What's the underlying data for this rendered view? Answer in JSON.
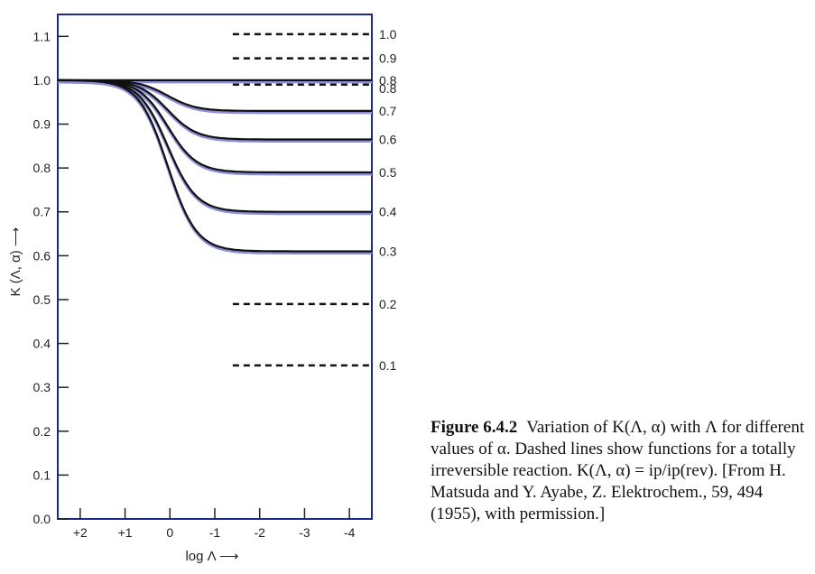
{
  "chart_data": {
    "type": "line",
    "title": "",
    "xlabel": "log Λ ⟶",
    "ylabel": "K (Λ, α) ⟶",
    "x_direction": "decreasing",
    "xlim": [
      2.5,
      -4.5
    ],
    "ylim": [
      0.0,
      1.15
    ],
    "x_ticks": [
      2,
      1,
      0,
      -1,
      -2,
      -3,
      -4
    ],
    "x_tick_labels": [
      "+2",
      "+1",
      "0",
      "-1",
      "-2",
      "-3",
      "-4"
    ],
    "y_ticks": [
      0.0,
      0.1,
      0.2,
      0.3,
      0.4,
      0.5,
      0.6,
      0.7,
      0.8,
      0.9,
      1.0,
      1.1
    ],
    "y_tick_labels": [
      "0.0",
      "0.1",
      "0.2",
      "0.3",
      "0.4",
      "0.5",
      "0.6",
      "0.7",
      "0.8",
      "0.9",
      "1.0",
      "1.1"
    ],
    "grid": false,
    "solid_series": [
      {
        "label": "0.8",
        "plateau": 1.0
      },
      {
        "label": "0.7",
        "plateau": 0.93
      },
      {
        "label": "0.6",
        "plateau": 0.865
      },
      {
        "label": "0.5",
        "plateau": 0.79
      },
      {
        "label": "0.4",
        "plateau": 0.7
      },
      {
        "label": "0.3",
        "plateau": 0.61
      }
    ],
    "dashed_series": [
      {
        "label": "1.0",
        "value": 1.105
      },
      {
        "label": "0.9",
        "value": 1.05
      },
      {
        "label": "0.8",
        "value": 0.99
      },
      {
        "label": "0.2",
        "value": 0.49
      },
      {
        "label": "0.1",
        "value": 0.35
      }
    ],
    "dashed_x_range": [
      -1.4,
      -4.5
    ]
  },
  "caption": {
    "figure_number": "Figure 6.4.2",
    "text": "Variation of K(Λ, α) with Λ for different values of α. Dashed lines show functions for a totally irreversible reaction. K(Λ, α) = ip/ip(rev). [From H. Matsuda and Y. Ayabe, Z. Elektrochem., 59, 494 (1955), with permission.]"
  }
}
